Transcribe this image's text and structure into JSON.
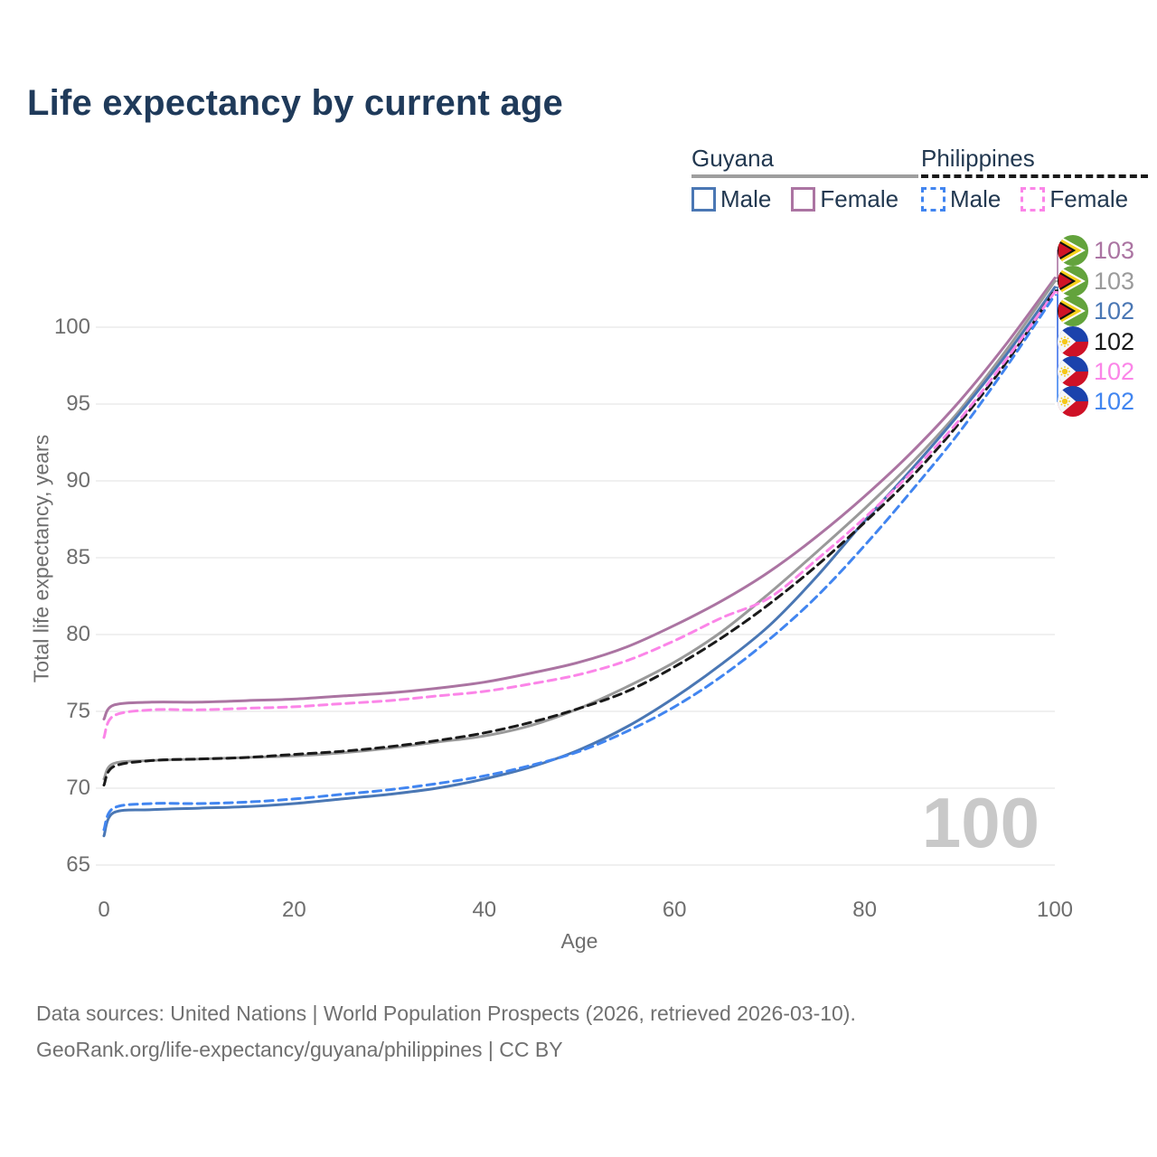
{
  "title": "Life expectancy by current age",
  "legend": {
    "groups": [
      {
        "country": "Guyana",
        "line_style": "solid",
        "underline_color": "#9E9E9E",
        "items": [
          {
            "label": "Male",
            "color": "#4A77B4",
            "dashed": false
          },
          {
            "label": "Female",
            "color": "#AB74A2",
            "dashed": false
          }
        ]
      },
      {
        "country": "Philippines",
        "line_style": "dashed",
        "underline_color": "#1A1A1A",
        "items": [
          {
            "label": "Male",
            "color": "#4185F0",
            "dashed": true
          },
          {
            "label": "Female",
            "color": "#FB85E8",
            "dashed": true
          }
        ]
      }
    ]
  },
  "axes": {
    "x": {
      "label": "Age",
      "ticks": [
        {
          "label": "0",
          "value": 0
        },
        {
          "label": "20",
          "value": 20
        },
        {
          "label": "40",
          "value": 40
        },
        {
          "label": "60",
          "value": 60
        },
        {
          "label": "80",
          "value": 80
        },
        {
          "label": "100",
          "value": 100
        }
      ]
    },
    "y": {
      "label": "Total life expectancy, years",
      "ticks": [
        {
          "label": "100",
          "value": 100
        },
        {
          "label": "95",
          "value": 95
        },
        {
          "label": "90",
          "value": 90
        },
        {
          "label": "85",
          "value": 85
        },
        {
          "label": "80",
          "value": 80
        },
        {
          "label": "75",
          "value": 75
        },
        {
          "label": "70",
          "value": 70
        },
        {
          "label": "65",
          "value": 65
        }
      ]
    }
  },
  "chart_data": {
    "type": "line",
    "title": "Life expectancy by current age",
    "xlabel": "Age",
    "ylabel": "Total life expectancy, years",
    "xlim": [
      0,
      100
    ],
    "ylim": [
      65,
      104
    ],
    "xticks": [
      0,
      20,
      40,
      60,
      80,
      100
    ],
    "yticks": [
      65,
      70,
      75,
      80,
      85,
      90,
      95,
      100
    ],
    "grid": "horizontal",
    "legend_position": "top-right",
    "hover_age_indicator": "100",
    "x": [
      0,
      1,
      5,
      10,
      15,
      20,
      25,
      30,
      35,
      40,
      45,
      50,
      55,
      60,
      65,
      70,
      75,
      80,
      85,
      90,
      95,
      100
    ],
    "series": [
      {
        "id": "guyana-female",
        "name": "Guyana Female",
        "country": "Guyana",
        "sex": "Female",
        "color": "#AB74A2",
        "dash": false,
        "end_label": "103",
        "values": [
          74.5,
          75.4,
          75.6,
          75.6,
          75.7,
          75.8,
          76.0,
          76.2,
          76.5,
          76.9,
          77.5,
          78.2,
          79.2,
          80.6,
          82.2,
          84.1,
          86.4,
          89.0,
          91.9,
          95.2,
          99.0,
          103.2
        ]
      },
      {
        "id": "guyana-all",
        "name": "Guyana (both sexes)",
        "country": "Guyana",
        "sex": "All",
        "color": "#9A9A9A",
        "dash": false,
        "end_label": "103",
        "values": [
          70.6,
          71.6,
          71.8,
          71.9,
          72.0,
          72.1,
          72.3,
          72.6,
          73.0,
          73.4,
          74.1,
          75.2,
          76.6,
          78.2,
          80.2,
          82.7,
          85.4,
          88.2,
          91.2,
          94.6,
          98.6,
          103.0
        ]
      },
      {
        "id": "guyana-male",
        "name": "Guyana Male",
        "country": "Guyana",
        "sex": "Male",
        "color": "#4A77B4",
        "dash": false,
        "end_label": "102",
        "values": [
          66.9,
          68.4,
          68.6,
          68.7,
          68.8,
          69.0,
          69.3,
          69.6,
          70.0,
          70.6,
          71.4,
          72.5,
          74.0,
          75.9,
          78.1,
          80.6,
          83.8,
          87.4,
          90.8,
          94.4,
          98.3,
          102.6
        ]
      },
      {
        "id": "philippines-all",
        "name": "Philippines (both sexes)",
        "country": "Philippines",
        "sex": "All",
        "color": "#1A1A1A",
        "dash": true,
        "end_label": "102",
        "values": [
          70.2,
          71.4,
          71.8,
          71.9,
          72.0,
          72.2,
          72.4,
          72.7,
          73.1,
          73.6,
          74.3,
          75.2,
          76.3,
          77.9,
          79.8,
          82.0,
          84.5,
          87.3,
          90.3,
          93.8,
          97.8,
          102.4
        ]
      },
      {
        "id": "philippines-female",
        "name": "Philippines Female",
        "country": "Philippines",
        "sex": "Female",
        "color": "#FB85E8",
        "dash": true,
        "end_label": "102",
        "values": [
          73.3,
          74.7,
          75.1,
          75.1,
          75.2,
          75.3,
          75.5,
          75.7,
          76.0,
          76.3,
          76.8,
          77.4,
          78.3,
          79.6,
          81.1,
          82.4,
          84.9,
          87.6,
          90.6,
          94.0,
          98.0,
          102.3
        ]
      },
      {
        "id": "philippines-male",
        "name": "Philippines Male",
        "country": "Philippines",
        "sex": "Male",
        "color": "#4185F0",
        "dash": true,
        "end_label": "102",
        "values": [
          67.3,
          68.7,
          69.0,
          69.0,
          69.1,
          69.3,
          69.6,
          69.9,
          70.3,
          70.8,
          71.5,
          72.4,
          73.7,
          75.3,
          77.3,
          79.7,
          82.5,
          85.8,
          89.4,
          93.2,
          97.5,
          102.1
        ]
      }
    ]
  },
  "end_labels": [
    {
      "value": "103",
      "flag": "guyana"
    },
    {
      "value": "103",
      "flag": "guyana"
    },
    {
      "value": "102",
      "flag": "guyana"
    },
    {
      "value": "102",
      "flag": "philippines"
    },
    {
      "value": "102",
      "flag": "philippines"
    },
    {
      "value": "102",
      "flag": "philippines"
    }
  ],
  "watermark": {
    "text": "100"
  },
  "footer": {
    "line1": "Data sources: United Nations | World Population Prospects (2026, retrieved 2026-03-10).",
    "line2": "GeoRank.org/life-expectancy/guyana/philippines | CC BY"
  }
}
